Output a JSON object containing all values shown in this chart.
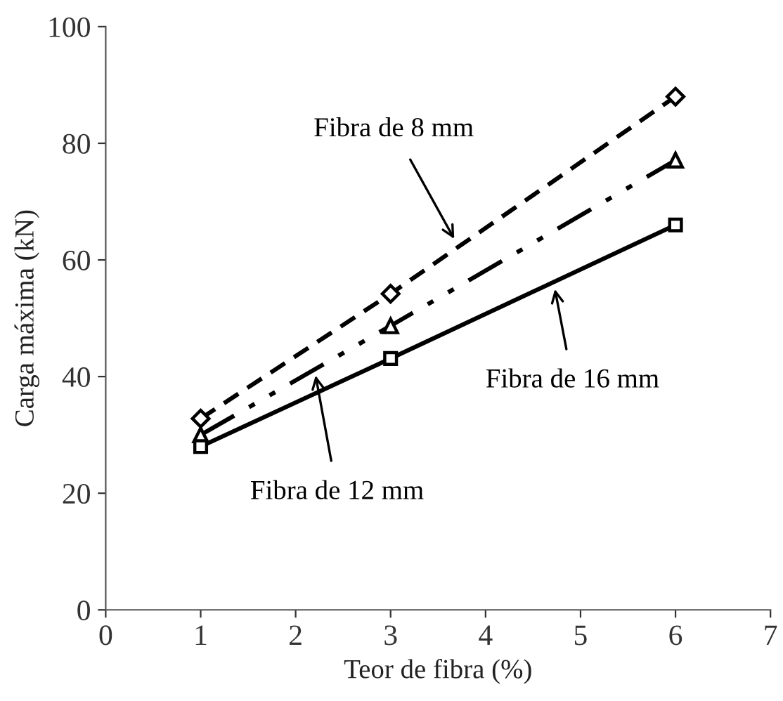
{
  "chart_data": {
    "type": "line",
    "xlabel": "Teor de fibra (%)",
    "ylabel": "Carga máxima (kN)",
    "x": [
      1,
      3,
      6
    ],
    "xlim": [
      0,
      7
    ],
    "xticks": [
      0,
      1,
      2,
      3,
      4,
      5,
      6,
      7
    ],
    "ylim": [
      0,
      100
    ],
    "yticks": [
      0,
      20,
      40,
      60,
      80,
      100
    ],
    "grid": false,
    "legend": false,
    "series": [
      {
        "color": "#000000",
        "values": [
          32.8,
          54.2,
          88
        ],
        "marker": "diamond",
        "line_style": "dashed"
      },
      {
        "color": "#000000",
        "values": [
          30,
          48.7,
          77.1
        ],
        "marker": "triangle",
        "line_style": "dashdotdot"
      },
      {
        "color": "#000000",
        "values": [
          28,
          43.1,
          66
        ],
        "marker": "square",
        "line_style": "solid"
      }
    ],
    "annotations": [
      {
        "text": "Fibra de 8 mm",
        "x": 3.67,
        "y": 63.6
      },
      {
        "text": "Fibra de 12 mm",
        "x": 2.21,
        "y": 40.2
      },
      {
        "text": "Fibra de 16 mm",
        "x": 4.73,
        "y": 55
      }
    ]
  }
}
